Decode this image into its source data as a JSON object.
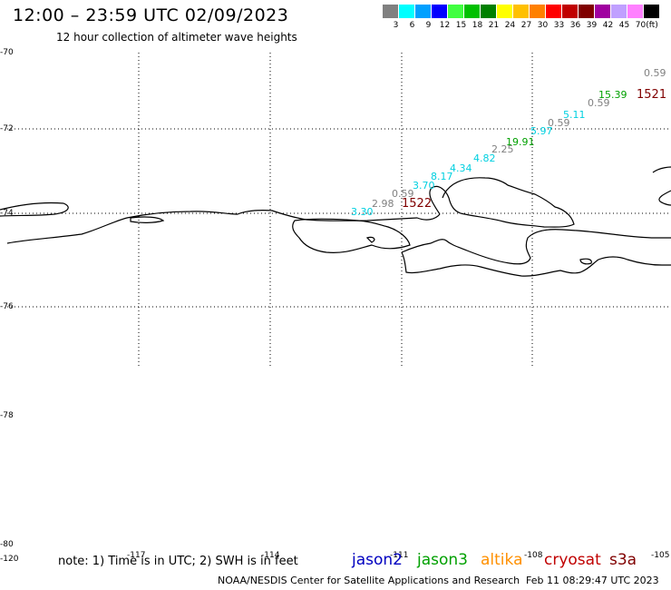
{
  "header": {
    "title": "12:00 – 23:59 UTC 02/09/2023",
    "subtitle": "12 hour collection of altimeter wave heights"
  },
  "legend": {
    "unit": "(ft)",
    "swatches": [
      {
        "label": "3",
        "color": "#808080"
      },
      {
        "label": "6",
        "color": "#00ffff"
      },
      {
        "label": "9",
        "color": "#00a0ff"
      },
      {
        "label": "12",
        "color": "#0000ff"
      },
      {
        "label": "15",
        "color": "#40ff40"
      },
      {
        "label": "18",
        "color": "#00c000"
      },
      {
        "label": "21",
        "color": "#008000"
      },
      {
        "label": "24",
        "color": "#ffff00"
      },
      {
        "label": "27",
        "color": "#ffc000"
      },
      {
        "label": "30",
        "color": "#ff8000"
      },
      {
        "label": "33",
        "color": "#ff0000"
      },
      {
        "label": "36",
        "color": "#c00000"
      },
      {
        "label": "39",
        "color": "#800000"
      },
      {
        "label": "42",
        "color": "#a000a0"
      },
      {
        "label": "45",
        "color": "#c0a0ff"
      },
      {
        "label": "70",
        "color": "#ff80ff"
      },
      {
        "label": "",
        "color": "#000000"
      }
    ]
  },
  "map": {
    "latitude_labels": [
      "-70",
      "-72",
      "-74",
      "-76",
      "-78",
      "-80"
    ],
    "longitude_labels": [
      "-120",
      "-117",
      "-114",
      "-111",
      "-108",
      "-105"
    ],
    "wave_heights": [
      {
        "text": "0.59",
        "color": "#808080"
      },
      {
        "text": "15.39",
        "color": "#00a000"
      },
      {
        "text": "1521",
        "color": "#800000"
      },
      {
        "text": "0.59",
        "color": "#808080"
      },
      {
        "text": "5.11",
        "color": "#00d0e0"
      },
      {
        "text": "0.59",
        "color": "#808080"
      },
      {
        "text": "5.97",
        "color": "#00d0e0"
      },
      {
        "text": "19.91",
        "color": "#00a000"
      },
      {
        "text": "2.25",
        "color": "#808080"
      },
      {
        "text": "4.82",
        "color": "#00d0e0"
      },
      {
        "text": "4.34",
        "color": "#00d0e0"
      },
      {
        "text": "8.17",
        "color": "#00d0e0"
      },
      {
        "text": "3.70",
        "color": "#00d0e0"
      },
      {
        "text": "0.59",
        "color": "#808080"
      },
      {
        "text": "2.98",
        "color": "#808080"
      },
      {
        "text": "1522",
        "color": "#800000"
      },
      {
        "text": "3.30",
        "color": "#00d0e0"
      }
    ]
  },
  "footer": {
    "note": "note: 1) Time is in UTC; 2) SWH is in feet",
    "satellites": [
      {
        "name": "jason2",
        "color": "#0000c0"
      },
      {
        "name": "jason3",
        "color": "#00a000"
      },
      {
        "name": "altika",
        "color": "#ff9000"
      },
      {
        "name": "cryosat",
        "color": "#c00000"
      },
      {
        "name": "s3a",
        "color": "#800000"
      }
    ],
    "credit": "NOAA/NESDIS Center for Satellite Applications and Research",
    "datestamp": "Feb 11 08:29:47 UTC 2023"
  }
}
